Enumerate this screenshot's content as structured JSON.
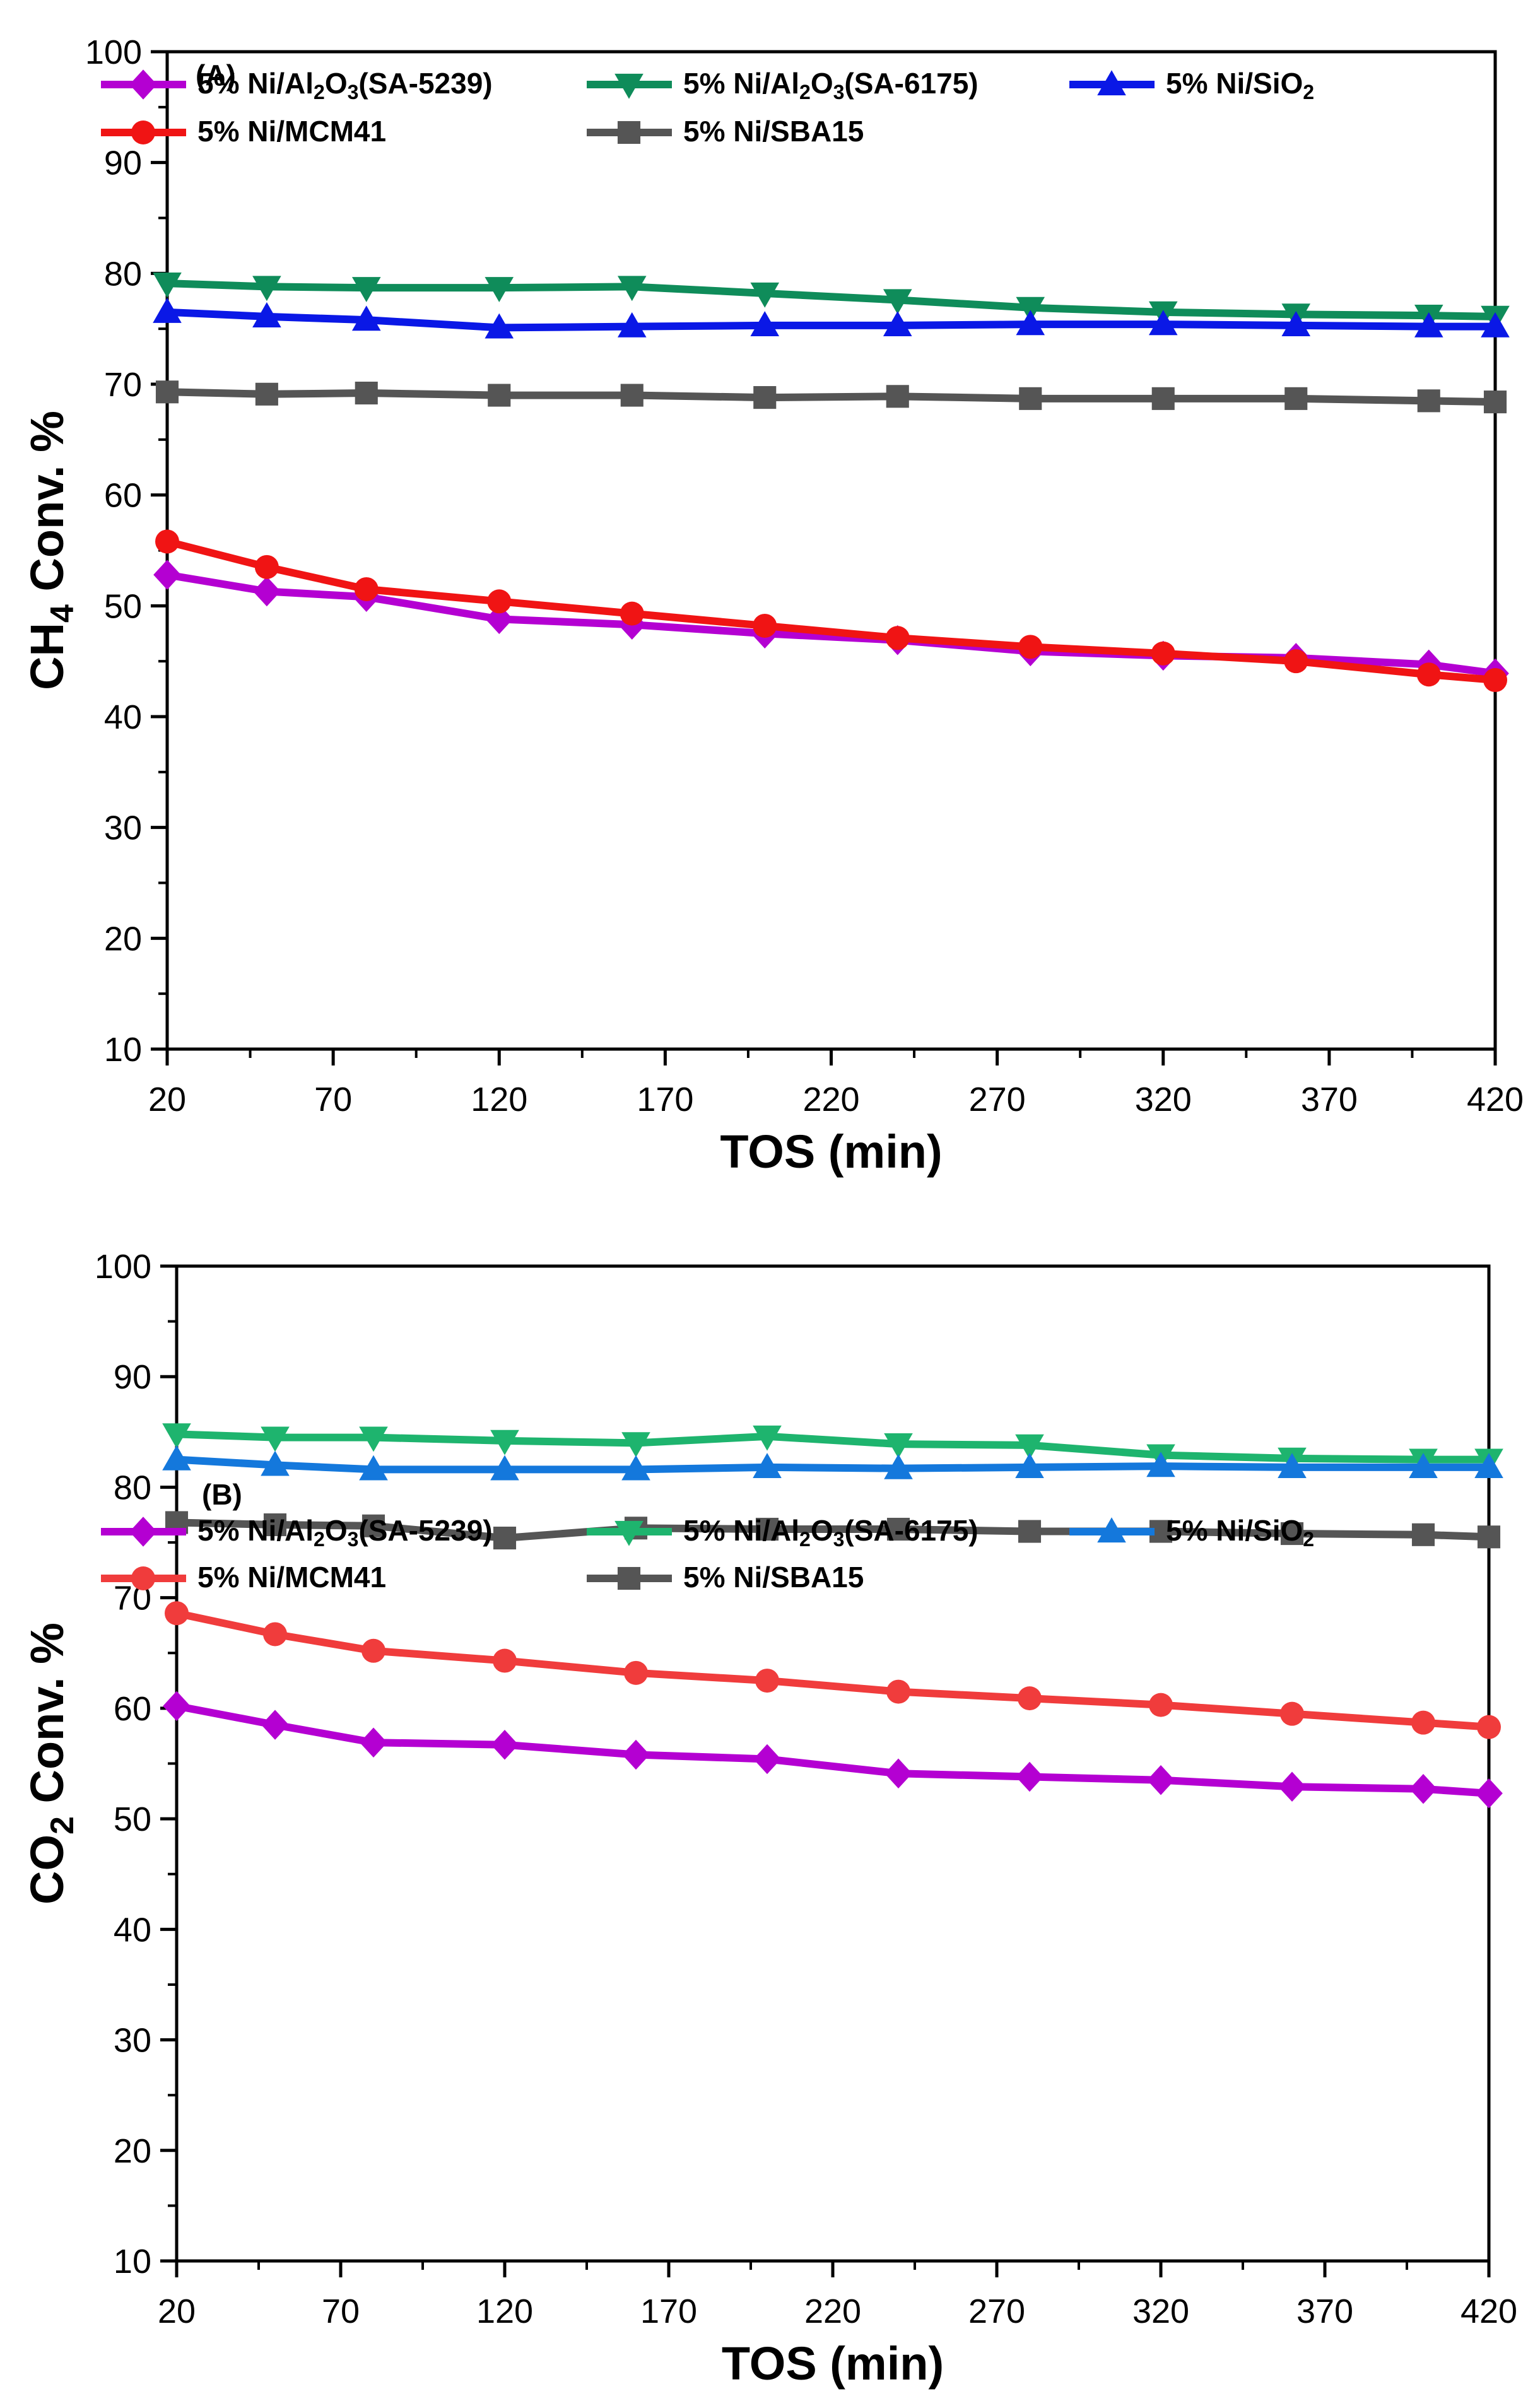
{
  "chart_data": [
    {
      "type": "line",
      "panel_label": "(A)",
      "xlabel": "TOS (min)",
      "ylabel": {
        "main": "CH",
        "sub": "4",
        "rest": " Conv. %"
      },
      "xlim": [
        20,
        420
      ],
      "ylim": [
        10,
        100
      ],
      "xticks": [
        20,
        70,
        120,
        170,
        220,
        270,
        320,
        370,
        420
      ],
      "yticks": [
        10,
        20,
        30,
        40,
        50,
        60,
        70,
        80,
        90,
        100
      ],
      "x": [
        20,
        50,
        80,
        120,
        160,
        200,
        240,
        280,
        320,
        360,
        400,
        420
      ],
      "series": [
        {
          "name": "5% Ni/Al2O3(SA-5239)",
          "label_parts": [
            "5% Ni/Al",
            "2",
            "O",
            "3",
            "(SA-5239)"
          ],
          "color": "#B400D2",
          "marker": "diamond",
          "values": [
            52.8,
            51.3,
            50.8,
            48.8,
            48.3,
            47.5,
            46.9,
            45.9,
            45.5,
            45.3,
            44.7,
            43.9
          ]
        },
        {
          "name": "5% Ni/Al2O3(SA-6175)",
          "label_parts": [
            "5% Ni/Al",
            "2",
            "O",
            "3",
            "(SA-6175)"
          ],
          "color": "#0F8C5A",
          "marker": "triangle-down",
          "values": [
            79.1,
            78.8,
            78.7,
            78.7,
            78.8,
            78.2,
            77.6,
            76.9,
            76.5,
            76.3,
            76.2,
            76.1
          ]
        },
        {
          "name": "5% Ni/SiO2",
          "label_parts": [
            "5% Ni/SiO",
            "2",
            "",
            "",
            ""
          ],
          "color": "#0A18E6",
          "marker": "triangle-up",
          "values": [
            76.5,
            76.1,
            75.8,
            75.1,
            75.2,
            75.3,
            75.3,
            75.4,
            75.4,
            75.3,
            75.2,
            75.2
          ]
        },
        {
          "name": "5% Ni/MCM41",
          "label_parts": [
            "5% Ni/MCM41",
            "",
            "",
            "",
            ""
          ],
          "color": "#F01414",
          "marker": "circle",
          "values": [
            55.8,
            53.5,
            51.5,
            50.4,
            49.3,
            48.2,
            47.1,
            46.3,
            45.7,
            45.0,
            43.8,
            43.3
          ]
        },
        {
          "name": "5% Ni/SBA15",
          "label_parts": [
            "5% Ni/SBA15",
            "",
            "",
            "",
            ""
          ],
          "color": "#555555",
          "marker": "square",
          "values": [
            69.3,
            69.1,
            69.2,
            69.0,
            69.0,
            68.8,
            68.9,
            68.7,
            68.7,
            68.7,
            68.5,
            68.4
          ]
        }
      ]
    },
    {
      "type": "line",
      "panel_label": "(B)",
      "xlabel": "TOS (min)",
      "ylabel": {
        "main": "CO",
        "sub": "2",
        "rest": " Conv. %"
      },
      "xlim": [
        20,
        420
      ],
      "ylim": [
        10,
        100
      ],
      "xticks": [
        20,
        70,
        120,
        170,
        220,
        270,
        320,
        370,
        420
      ],
      "yticks": [
        10,
        20,
        30,
        40,
        50,
        60,
        70,
        80,
        90,
        100
      ],
      "x": [
        20,
        50,
        80,
        120,
        160,
        200,
        240,
        280,
        320,
        360,
        400,
        420
      ],
      "series": [
        {
          "name": "5% Ni/Al2O3(SA-5239)",
          "label_parts": [
            "5% Ni/Al",
            "2",
            "O",
            "3",
            "(SA-5239)"
          ],
          "color": "#B400D2",
          "marker": "diamond",
          "values": [
            60.2,
            58.5,
            56.9,
            56.7,
            55.8,
            55.4,
            54.1,
            53.8,
            53.5,
            52.9,
            52.7,
            52.3
          ]
        },
        {
          "name": "5% Ni/Al2O3(SA-6175)",
          "label_parts": [
            "5% Ni/Al",
            "2",
            "O",
            "3",
            "(SA-6175)"
          ],
          "color": "#1EB46E",
          "marker": "triangle-down",
          "values": [
            84.8,
            84.5,
            84.5,
            84.2,
            84.0,
            84.6,
            83.9,
            83.8,
            82.9,
            82.6,
            82.5,
            82.5
          ]
        },
        {
          "name": "5% Ni/SiO2",
          "label_parts": [
            "5% Ni/SiO",
            "2",
            "",
            "",
            ""
          ],
          "color": "#1478DC",
          "marker": "triangle-up",
          "values": [
            82.5,
            82.0,
            81.6,
            81.6,
            81.6,
            81.8,
            81.7,
            81.8,
            81.9,
            81.8,
            81.8,
            81.8
          ]
        },
        {
          "name": "5% Ni/MCM41",
          "label_parts": [
            "5% Ni/MCM41",
            "",
            "",
            "",
            ""
          ],
          "color": "#F03C3C",
          "marker": "circle",
          "values": [
            68.6,
            66.7,
            65.2,
            64.3,
            63.2,
            62.5,
            61.5,
            60.9,
            60.3,
            59.5,
            58.7,
            58.3
          ]
        },
        {
          "name": "5% Ni/SBA15",
          "label_parts": [
            "5% Ni/SBA15",
            "",
            "",
            "",
            ""
          ],
          "color": "#555555",
          "marker": "square",
          "values": [
            76.8,
            76.6,
            76.5,
            75.4,
            76.3,
            76.2,
            76.2,
            76.0,
            76.0,
            75.8,
            75.7,
            75.5
          ]
        }
      ]
    }
  ]
}
